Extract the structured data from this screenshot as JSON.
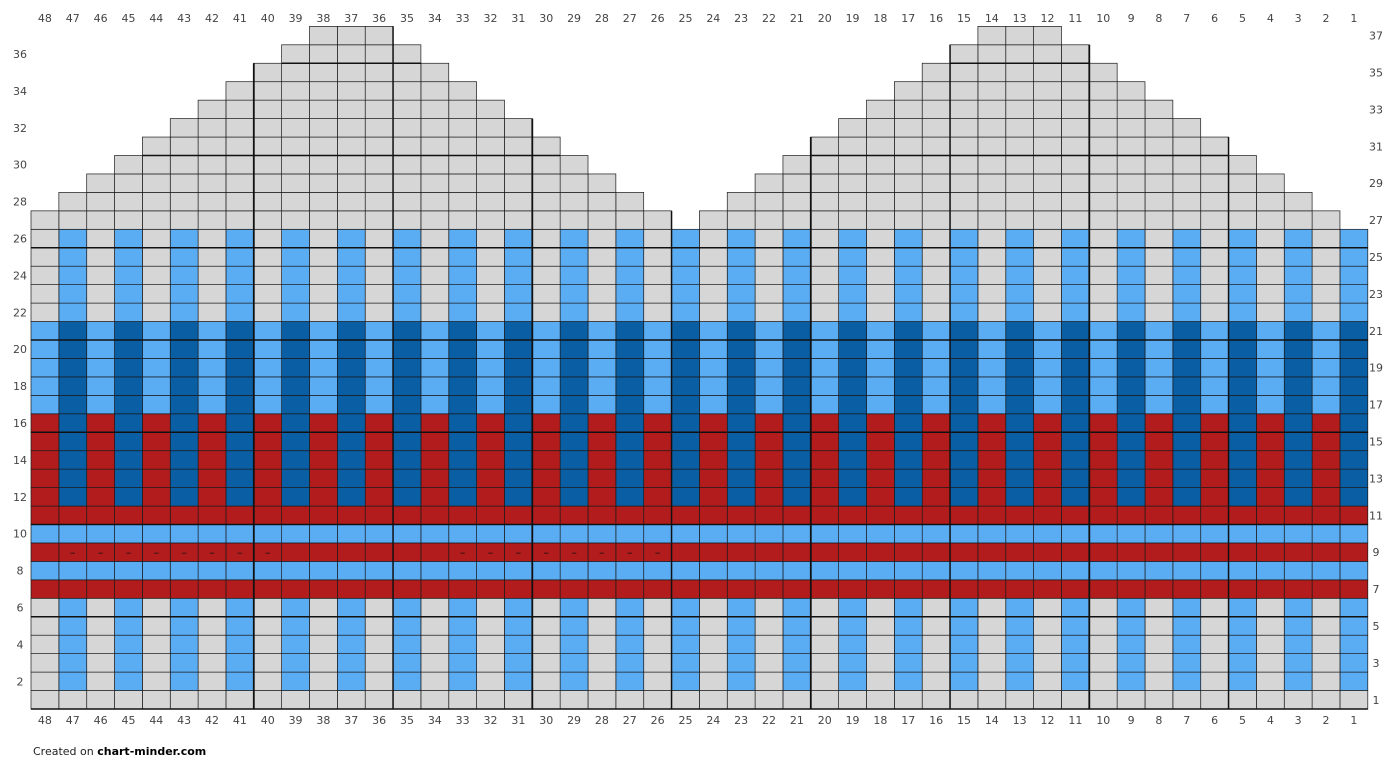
{
  "footer": {
    "prefix": "Created on",
    "site": "chart-minder.com"
  },
  "colors": {
    "background": "#d6d6d6",
    "light_blue": "#5aacf3",
    "dark_blue": "#0a5ea4",
    "red": "#b31c1c",
    "grid_line": "#111111"
  },
  "chart_data": {
    "type": "knitting-stitch-chart",
    "columns": 48,
    "rows": 37,
    "column_numbering": "right-to-left",
    "column_labels_top": [
      "48",
      "47",
      "46",
      "45",
      "44",
      "43",
      "42",
      "41",
      "40",
      "39",
      "38",
      "37",
      "36",
      "35",
      "34",
      "33",
      "32",
      "31",
      "30",
      "29",
      "28",
      "27",
      "26",
      "25",
      "24",
      "23",
      "22",
      "21",
      "20",
      "19",
      "18",
      "17",
      "16",
      "15",
      "14",
      "13",
      "12",
      "11",
      "10",
      "9",
      "8",
      "7",
      "6",
      "5",
      "4",
      "3",
      "2",
      "1"
    ],
    "column_labels_bottom": [
      "48",
      "47",
      "46",
      "45",
      "44",
      "43",
      "42",
      "41",
      "40",
      "39",
      "38",
      "37",
      "36",
      "35",
      "34",
      "33",
      "32",
      "31",
      "30",
      "29",
      "28",
      "27",
      "26",
      "25",
      "24",
      "23",
      "22",
      "21",
      "20",
      "19",
      "18",
      "17",
      "16",
      "15",
      "14",
      "13",
      "12",
      "11",
      "10",
      "9",
      "8",
      "7",
      "6",
      "5",
      "4",
      "3",
      "2",
      "1"
    ],
    "row_labels_left": [
      "2",
      "4",
      "6",
      "8",
      "10",
      "12",
      "14",
      "16",
      "18",
      "20",
      "22",
      "24",
      "26",
      "28",
      "30",
      "32",
      "34",
      "36"
    ],
    "row_labels_right": [
      "1",
      "3",
      "5",
      "7",
      "9",
      "11",
      "13",
      "15",
      "17",
      "19",
      "21",
      "23",
      "25",
      "27",
      "29",
      "31",
      "33",
      "35",
      "37"
    ],
    "shaping_top_row_per_column": [
      27,
      28,
      29,
      30,
      31,
      32,
      33,
      34,
      35,
      36,
      37,
      37,
      37,
      36,
      35,
      34,
      33,
      32,
      31,
      30,
      29,
      28,
      27,
      26,
      27,
      28,
      29,
      30,
      31,
      32,
      33,
      34,
      35,
      36,
      37,
      37,
      37,
      36,
      35,
      34,
      33,
      32,
      31,
      30,
      29,
      28,
      27,
      26
    ],
    "row_colors": [
      {
        "rows": [
          1,
          1
        ],
        "pattern": "solid",
        "color": "background"
      },
      {
        "rows": [
          2,
          6
        ],
        "pattern": "alternate",
        "colors": [
          "light_blue",
          "background"
        ]
      },
      {
        "rows": [
          7,
          7
        ],
        "pattern": "solid",
        "color": "red"
      },
      {
        "rows": [
          8,
          8
        ],
        "pattern": "solid",
        "color": "light_blue"
      },
      {
        "rows": [
          9,
          9
        ],
        "pattern": "solid",
        "color": "red"
      },
      {
        "rows": [
          10,
          10
        ],
        "pattern": "solid",
        "color": "light_blue"
      },
      {
        "rows": [
          11,
          11
        ],
        "pattern": "solid",
        "color": "red"
      },
      {
        "rows": [
          12,
          16
        ],
        "pattern": "alternate",
        "colors": [
          "dark_blue",
          "red"
        ]
      },
      {
        "rows": [
          17,
          21
        ],
        "pattern": "alternate",
        "colors": [
          "dark_blue",
          "light_blue"
        ]
      },
      {
        "rows": [
          22,
          26
        ],
        "pattern": "alternate",
        "colors": [
          "light_blue",
          "background"
        ]
      },
      {
        "rows": [
          27,
          37
        ],
        "pattern": "solid",
        "color": "background"
      }
    ],
    "purl_marks": {
      "row": 9,
      "columns": [
        47,
        46,
        45,
        44,
        43,
        42,
        41,
        40,
        33,
        32,
        31,
        30,
        29,
        28,
        27,
        26
      ],
      "symbol": "–"
    }
  }
}
